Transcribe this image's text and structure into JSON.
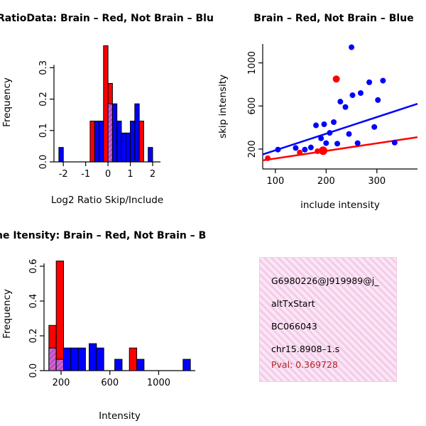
{
  "colors": {
    "red": "#ff0000",
    "blue": "#0000ff",
    "overlap_fill": "#a855c8",
    "overlap_line": "#f060d0",
    "info_box_bg": "#f3cce8",
    "info_box_bg_light": "#fbe6f5",
    "pval": "#b22222",
    "axis": "#000000"
  },
  "info_box": {
    "lines": [
      "G6980226@J919989@j_",
      "altTxStart",
      "BC066043",
      "chr15.8908–1.s"
    ],
    "pval": "Pval: 0.369728"
  },
  "chart_data": [
    {
      "id": "ratio_hist",
      "type": "bar",
      "title": "RatioData: Brain – Red, Not Brain – Blu",
      "xlabel": "Log2 Ratio Skip/Include",
      "ylabel": "Frequency",
      "xlim": [
        -2.42,
        2.35
      ],
      "ylim": [
        0,
        0.38
      ],
      "xticks": [
        -2,
        -1,
        0,
        1,
        2
      ],
      "xtick_labels": [
        "-2",
        "-1",
        "0",
        "1",
        "2"
      ],
      "yticks": [
        0,
        0.1,
        0.2,
        0.3
      ],
      "ytick_labels": [
        "0.0",
        "0.1",
        "0.2",
        "0.3"
      ],
      "bars": [
        {
          "x0": -2.2,
          "x1": -2.0,
          "h": 0.046,
          "color": "blue"
        },
        {
          "x0": -0.8,
          "x1": -0.6,
          "h": 0.13,
          "color": "red"
        },
        {
          "x0": -0.6,
          "x1": -0.4,
          "h": 0.13,
          "color": "blue"
        },
        {
          "x0": -0.4,
          "x1": -0.2,
          "h": 0.13,
          "color": "blue"
        },
        {
          "x0": -0.2,
          "x1": 0.0,
          "h": 0.37,
          "color": "red"
        },
        {
          "x0": 0.0,
          "x1": 0.2,
          "h": 0.25,
          "color": "red"
        },
        {
          "x0": 0.0,
          "x1": 0.2,
          "h": 0.185,
          "color": "overlap"
        },
        {
          "x0": 0.2,
          "x1": 0.4,
          "h": 0.185,
          "color": "blue"
        },
        {
          "x0": 0.4,
          "x1": 0.6,
          "h": 0.13,
          "color": "blue"
        },
        {
          "x0": 0.6,
          "x1": 0.8,
          "h": 0.092,
          "color": "blue"
        },
        {
          "x0": 0.8,
          "x1": 1.0,
          "h": 0.092,
          "color": "blue"
        },
        {
          "x0": 1.0,
          "x1": 1.2,
          "h": 0.13,
          "color": "blue"
        },
        {
          "x0": 1.2,
          "x1": 1.4,
          "h": 0.185,
          "color": "blue"
        },
        {
          "x0": 1.4,
          "x1": 1.6,
          "h": 0.13,
          "color": "red"
        },
        {
          "x0": 1.8,
          "x1": 2.0,
          "h": 0.046,
          "color": "blue"
        }
      ]
    },
    {
      "id": "scatter",
      "type": "scatter",
      "title": "Brain – Red, Not Brain – Blue",
      "xlabel": "include intensity",
      "ylabel": "skip intensity",
      "xlim": [
        75,
        380
      ],
      "ylim": [
        15,
        1175
      ],
      "xticks": [
        100,
        200,
        300
      ],
      "xtick_labels": [
        "100",
        "200",
        "300"
      ],
      "yticks": [
        200,
        600,
        1000
      ],
      "ytick_labels": [
        "200",
        "600",
        "1000"
      ],
      "series": [
        {
          "name": "not-brain",
          "color": "blue",
          "r": 4,
          "points": [
            [
              105,
              195
            ],
            [
              140,
              210
            ],
            [
              158,
              195
            ],
            [
              170,
              215
            ],
            [
              180,
              420
            ],
            [
              190,
              300
            ],
            [
              196,
              430
            ],
            [
              200,
              255
            ],
            [
              207,
              350
            ],
            [
              215,
              450
            ],
            [
              222,
              250
            ],
            [
              228,
              640
            ],
            [
              238,
              590
            ],
            [
              245,
              340
            ],
            [
              250,
              1145
            ],
            [
              252,
              700
            ],
            [
              262,
              255
            ],
            [
              268,
              720
            ],
            [
              285,
              820
            ],
            [
              295,
              405
            ],
            [
              302,
              655
            ],
            [
              312,
              835
            ],
            [
              335,
              260
            ]
          ]
        },
        {
          "name": "brain",
          "color": "red",
          "r": 4,
          "points": [
            [
              85,
              115
            ],
            [
              148,
              168
            ],
            [
              183,
              180
            ],
            [
              194,
              185,
              6
            ],
            [
              220,
              850,
              5
            ]
          ]
        }
      ],
      "fit_lines": [
        {
          "color": "blue",
          "x0": 75,
          "y0": 150,
          "x1": 380,
          "y1": 620
        },
        {
          "color": "red",
          "x0": 75,
          "y0": 95,
          "x1": 380,
          "y1": 310
        }
      ]
    },
    {
      "id": "intensity_hist",
      "type": "bar",
      "title": "ne Itensity: Brain – Red, Not Brain – B",
      "xlabel": "Intensity",
      "ylabel": "Frequency",
      "xlim": [
        60,
        1300
      ],
      "ylim": [
        0,
        0.653
      ],
      "xticks": [
        200,
        600,
        1000
      ],
      "xtick_labels": [
        "200",
        "600",
        "1000"
      ],
      "yticks": [
        0,
        0.2,
        0.4,
        0.6
      ],
      "ytick_labels": [
        "0.0",
        "0.2",
        "0.4",
        "0.6"
      ],
      "bars": [
        {
          "x0": 100,
          "x1": 160,
          "h": 0.26,
          "color": "red"
        },
        {
          "x0": 100,
          "x1": 160,
          "h": 0.13,
          "color": "overlap"
        },
        {
          "x0": 160,
          "x1": 220,
          "h": 0.63,
          "color": "red"
        },
        {
          "x0": 160,
          "x1": 220,
          "h": 0.065,
          "color": "overlap"
        },
        {
          "x0": 220,
          "x1": 280,
          "h": 0.13,
          "color": "blue"
        },
        {
          "x0": 280,
          "x1": 340,
          "h": 0.13,
          "color": "blue"
        },
        {
          "x0": 340,
          "x1": 400,
          "h": 0.13,
          "color": "blue"
        },
        {
          "x0": 430,
          "x1": 490,
          "h": 0.155,
          "color": "blue"
        },
        {
          "x0": 490,
          "x1": 550,
          "h": 0.13,
          "color": "blue"
        },
        {
          "x0": 640,
          "x1": 700,
          "h": 0.065,
          "color": "blue"
        },
        {
          "x0": 760,
          "x1": 820,
          "h": 0.13,
          "color": "red"
        },
        {
          "x0": 820,
          "x1": 880,
          "h": 0.065,
          "color": "blue"
        },
        {
          "x0": 1200,
          "x1": 1260,
          "h": 0.065,
          "color": "blue"
        }
      ]
    }
  ]
}
